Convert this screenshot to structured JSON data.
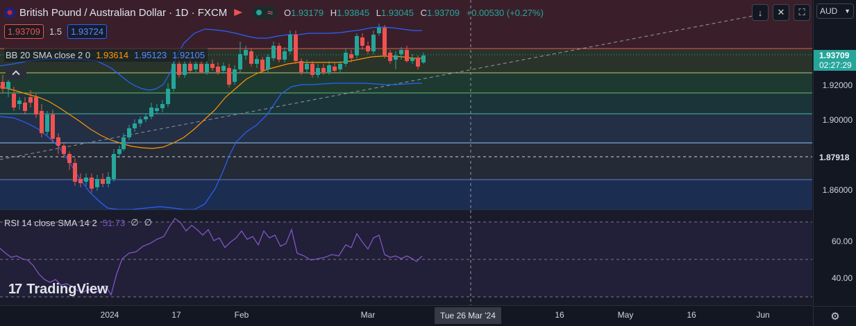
{
  "header": {
    "symbol_title": "British Pound / Australian Dollar · 1D · FXCM",
    "open_label": "O",
    "open_value": "1.93179",
    "high_label": "H",
    "high_value": "1.93845",
    "low_label": "L",
    "low_value": "1.93045",
    "close_label": "C",
    "close_value": "1.93709",
    "change_value": "+0.00530 (+0.27%)",
    "sell_price": "1.93709",
    "spread": "1.5",
    "buy_price": "1.93724"
  },
  "indicators": {
    "bb_label": "BB 20 SMA close 2 0",
    "bb_basis": "1.93614",
    "bb_upper": "1.95123",
    "bb_lower": "1.92105",
    "rsi_label": "RSI 14 close SMA 14 2",
    "rsi_value": "51.73",
    "rsi_extra1": "∅",
    "rsi_extra2": "∅"
  },
  "price_axis": {
    "currency": "AUD",
    "current_price": "1.93709",
    "countdown": "02:27:29",
    "hline_price": "1.87918",
    "ticks": [
      "1.92000",
      "1.90000",
      "1.86000"
    ],
    "rsi_ticks": [
      "60.00",
      "40.00"
    ]
  },
  "time_axis": {
    "labels": [
      "2024",
      "17",
      "Feb",
      "Mar",
      "16",
      "May",
      "16",
      "Jun"
    ],
    "crosshair_label": "Tue 26 Mar '24"
  },
  "branding": {
    "logo_text": "TradingView"
  },
  "colors": {
    "up": "#26a69a",
    "down": "#ef5350",
    "bb_band": "#2962ff",
    "basis": "#ff9800",
    "rsi": "#7e57c2"
  }
}
